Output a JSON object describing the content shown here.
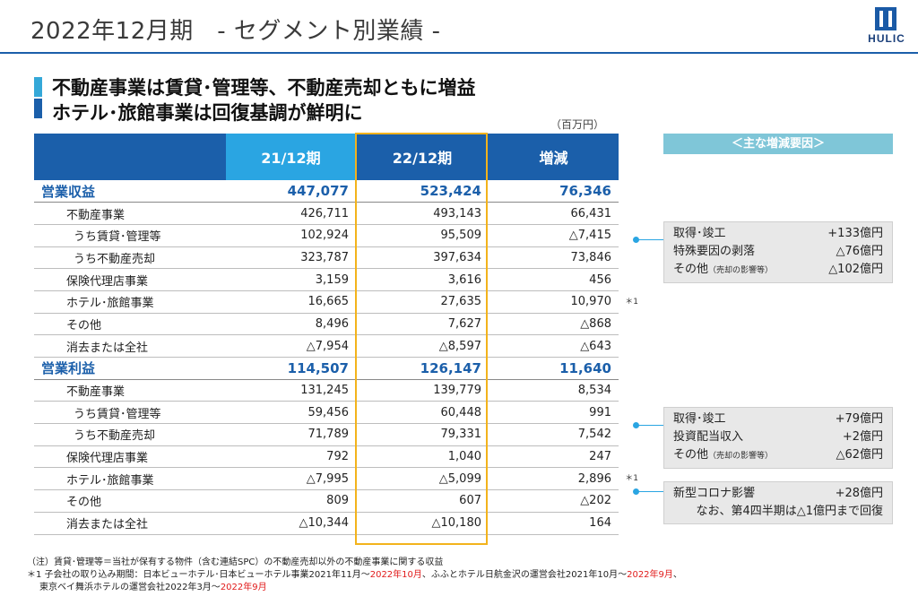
{
  "header": {
    "title": "2022年12月期　- セグメント別業績 -",
    "logo_text": "HULIC"
  },
  "headline": {
    "line1": "不動産事業は賃貸･管理等、不動産売却ともに増益",
    "line2": "ホテル･旅館事業は回復基調が鮮明に"
  },
  "unit": "（百万円）",
  "table": {
    "columns": [
      "",
      "21/12期",
      "22/12期",
      "増減"
    ],
    "rows": [
      {
        "label": "営業収益",
        "v1": "447,077",
        "v2": "523,424",
        "d": "76,346",
        "level": "sec"
      },
      {
        "label": "不動産事業",
        "v1": "426,711",
        "v2": "493,143",
        "d": "66,431",
        "level": "l1"
      },
      {
        "label": "うち賃貸･管理等",
        "v1": "102,924",
        "v2": "95,509",
        "d": "△7,415",
        "level": "l2"
      },
      {
        "label": "うち不動産売却",
        "v1": "323,787",
        "v2": "397,634",
        "d": "73,846",
        "level": "l2"
      },
      {
        "label": "保険代理店事業",
        "v1": "3,159",
        "v2": "3,616",
        "d": "456",
        "level": "l0"
      },
      {
        "label": "ホテル･旅館事業",
        "v1": "16,665",
        "v2": "27,635",
        "d": "10,970",
        "level": "l0",
        "note": "＊1"
      },
      {
        "label": "その他",
        "v1": "8,496",
        "v2": "7,627",
        "d": "△868",
        "level": "l0"
      },
      {
        "label": "消去または全社",
        "v1": "△7,954",
        "v2": "△8,597",
        "d": "△643",
        "level": "l0"
      },
      {
        "label": "営業利益",
        "v1": "114,507",
        "v2": "126,147",
        "d": "11,640",
        "level": "sec"
      },
      {
        "label": "不動産事業",
        "v1": "131,245",
        "v2": "139,779",
        "d": "8,534",
        "level": "l1"
      },
      {
        "label": "うち賃貸･管理等",
        "v1": "59,456",
        "v2": "60,448",
        "d": "991",
        "level": "l2"
      },
      {
        "label": "うち不動産売却",
        "v1": "71,789",
        "v2": "79,331",
        "d": "7,542",
        "level": "l2"
      },
      {
        "label": "保険代理店事業",
        "v1": "792",
        "v2": "1,040",
        "d": "247",
        "level": "l0"
      },
      {
        "label": "ホテル･旅館事業",
        "v1": "△7,995",
        "v2": "△5,099",
        "d": "2,896",
        "level": "l0",
        "note": "＊1"
      },
      {
        "label": "その他",
        "v1": "809",
        "v2": "607",
        "d": "△202",
        "level": "l0"
      },
      {
        "label": "消去または全社",
        "v1": "△10,344",
        "v2": "△10,180",
        "d": "164",
        "level": "l0"
      }
    ]
  },
  "factors": {
    "header": "＜主な増減要因＞",
    "box1": [
      {
        "label": "取得･竣工",
        "sub": "",
        "value": "+133億円"
      },
      {
        "label": "特殊要因の剥落",
        "sub": "",
        "value": "△76億円"
      },
      {
        "label": "その他",
        "sub": "（売却の影響等）",
        "value": "△102億円"
      }
    ],
    "box2": [
      {
        "label": "取得･竣工",
        "sub": "",
        "value": "+79億円"
      },
      {
        "label": "投資配当収入",
        "sub": "",
        "value": "+2億円"
      },
      {
        "label": "その他",
        "sub": "（売却の影響等）",
        "value": "△62億円"
      }
    ],
    "box3": {
      "label": "新型コロナ影響",
      "value": "+28億円",
      "note": "なお、第4四半期は△1億円まで回復"
    }
  },
  "footnotes": {
    "n1": "（注）賃貸･管理等＝当社が保有する物件（含む連結SPC）の不動産売却以外の不動産事業に関する収益",
    "n2a": "＊1  子会社の取り込み期間：日本ビューホテル･日本ビューホテル事業2021年11月～",
    "n2b": "2022年10月",
    "n2c": "、ふふとホテル日航金沢の運営会社2021年10月～",
    "n2d": "2022年9月",
    "n2e": "、",
    "n3a": "東京ベイ舞浜ホテルの運営会社2022年3月～",
    "n3b": "2022年9月"
  },
  "colors": {
    "brand_blue": "#1b5faa",
    "light_blue": "#2aa5e2",
    "highlight": "#f3b31c",
    "red_text": "#e11b1b"
  }
}
